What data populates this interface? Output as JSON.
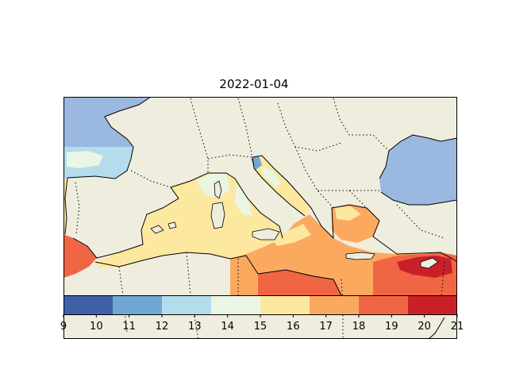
{
  "title": "2022-01-04",
  "colorbar": {
    "ticks": [
      "9",
      "10",
      "11",
      "12",
      "13",
      "14",
      "15",
      "16",
      "17",
      "18",
      "19",
      "20",
      "21"
    ],
    "bins": [
      9,
      10.5,
      12,
      13.5,
      15,
      16.5,
      18,
      19.5,
      21
    ],
    "colors": [
      "#4060a8",
      "#6fa8d0",
      "#b3dcec",
      "#eaf6e4",
      "#fde8a0",
      "#fca960",
      "#f06644",
      "#c92028"
    ]
  },
  "palette": {
    "land": "#efedde",
    "background_sea": "#9ab8e0"
  }
}
